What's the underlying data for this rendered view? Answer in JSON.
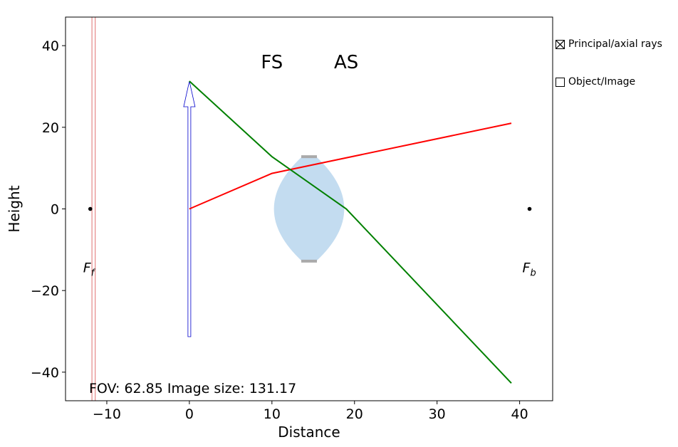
{
  "chart_data": {
    "type": "line",
    "xlabel": "Distance",
    "ylabel": "Height",
    "xlim": [
      -15,
      44
    ],
    "ylim": [
      -47,
      47
    ],
    "xticks": [
      -10,
      0,
      10,
      20,
      30,
      40
    ],
    "yticks": [
      -40,
      -20,
      0,
      20,
      40
    ],
    "xtick_labels": [
      "−10",
      "0",
      "10",
      "20",
      "30",
      "40"
    ],
    "ytick_labels": [
      "−40",
      "−20",
      "0",
      "20",
      "40"
    ],
    "grid": false,
    "series": [
      {
        "color": "#ff0000",
        "x": [
          0,
          10,
          39
        ],
        "y": [
          0,
          8.7,
          21
        ]
      },
      {
        "color": "#008000",
        "x": [
          0,
          10,
          19,
          39
        ],
        "y": [
          31.3,
          12.8,
          0,
          -42.7
        ]
      }
    ],
    "object_arrow": {
      "x": 0,
      "y_top": 31.3,
      "y_bottom": -31.3,
      "color": "#0000cc"
    },
    "lens": {
      "x_center": 14.5,
      "half_height": 12.8,
      "half_width": 4.5,
      "color": "#c3dcf0",
      "stop_color": "#aaaaaa"
    },
    "stop_lines": {
      "x": [
        -11.8,
        -11.4
      ],
      "color": "#e07070"
    },
    "stop_labels": [
      {
        "text": "FS",
        "x": 10,
        "y": 36
      },
      {
        "text": "AS",
        "x": 19,
        "y": 36
      }
    ],
    "focal_points": [
      {
        "letter": "F",
        "sub": "f",
        "x": -12,
        "y": 0
      },
      {
        "letter": "F",
        "sub": "b",
        "x": 41.2,
        "y": 0
      }
    ],
    "fov_text": "FOV: 62.85 Image size: 131.17"
  },
  "controls": {
    "principal_rays": {
      "label": "Principal/axial rays",
      "checked": true
    },
    "object_image": {
      "label": "Object/Image",
      "checked": false
    }
  }
}
